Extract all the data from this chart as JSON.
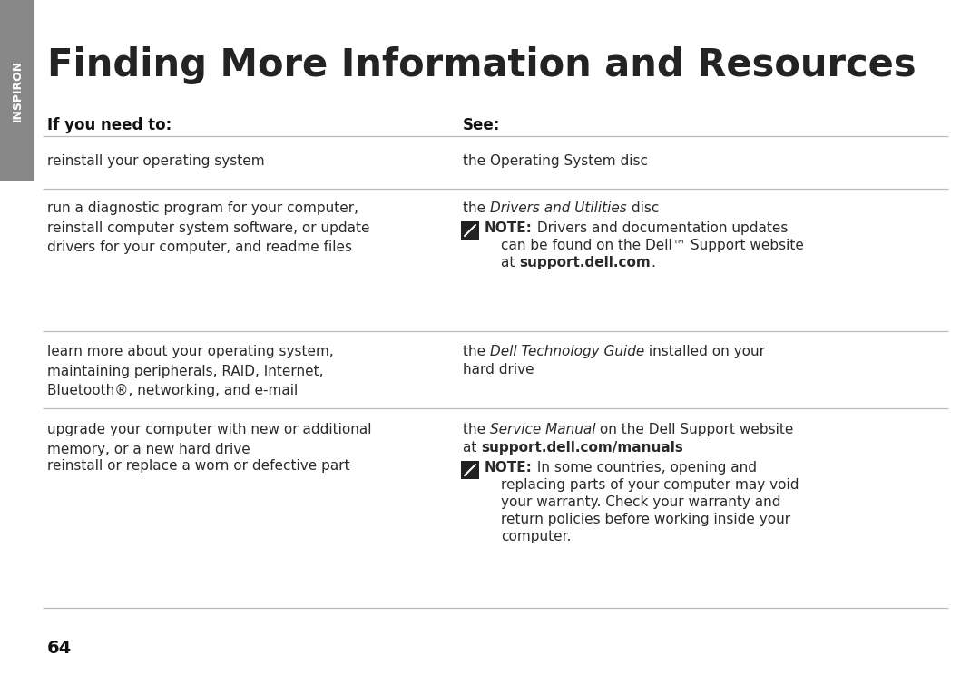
{
  "title": "Finding More Information and Resources",
  "sidebar_text": "INSPIRON",
  "sidebar_color": "#888888",
  "sidebar_text_color": "#ffffff",
  "bg_color": "#ffffff",
  "text_color": "#2a2a2a",
  "header_col1": "If you need to:",
  "header_col2": "See:",
  "page_number": "64",
  "title_fontsize": 30,
  "body_fontsize": 11,
  "header_fontsize": 12,
  "line_color": "#bbbbbb",
  "note_icon_color": "#222222"
}
